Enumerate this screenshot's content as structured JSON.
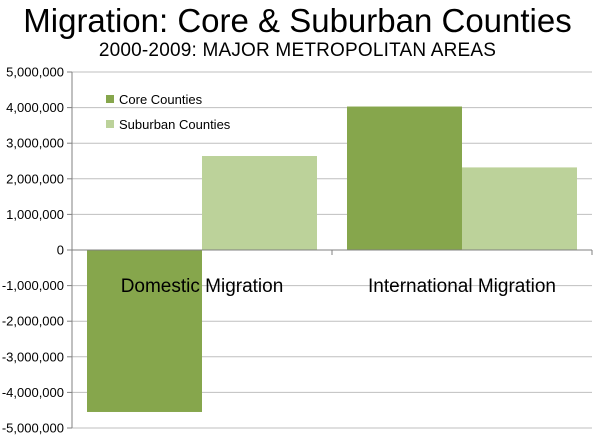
{
  "title": "Migration: Core & Suburban Counties",
  "subtitle": "2000-2009: MAJOR METROPOLITAN AREAS",
  "colors": {
    "core": "#86A64C",
    "suburban": "#BCD29A",
    "grid": "#BFBFBF",
    "axis": "#808080"
  },
  "chart_data": {
    "type": "bar",
    "title": "Migration: Core & Suburban Counties",
    "subtitle": "2000-2009: MAJOR METROPOLITAN AREAS",
    "categories": [
      "Domestic Migration",
      "International Migration"
    ],
    "series": [
      {
        "name": "Core Counties",
        "values": [
          -4550000,
          4030000
        ]
      },
      {
        "name": "Suburban Counties",
        "values": [
          2640000,
          2320000
        ]
      }
    ],
    "ylim": [
      -5000000,
      5000000
    ],
    "yticks": [
      5000000,
      4000000,
      3000000,
      2000000,
      1000000,
      0,
      -1000000,
      -2000000,
      -3000000,
      -4000000,
      -5000000
    ],
    "ytick_labels": [
      "5,000,000",
      "4,000,000",
      "3,000,000",
      "2,000,000",
      "1,000,000",
      "0",
      "-1,000,000",
      "-2,000,000",
      "-3,000,000",
      "-4,000,000",
      "-5,000,000"
    ],
    "grid": true,
    "legend": "top-left inside"
  }
}
